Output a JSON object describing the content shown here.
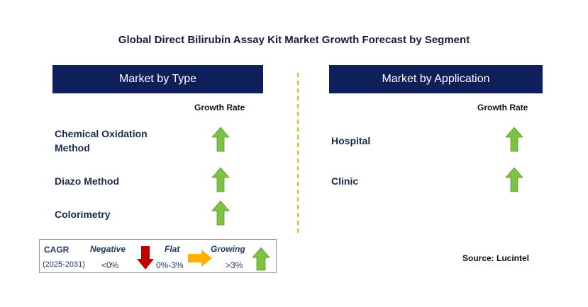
{
  "title": "Global Direct Bilirubin Assay Kit Market Growth Forecast by Segment",
  "panels": [
    {
      "header": "Market by Type",
      "column": "Growth Rate",
      "items": [
        "Chemical Oxidation Method",
        "Diazo Method",
        "Colorimetry"
      ]
    },
    {
      "header": "Market by Application",
      "column": "Growth Rate",
      "items": [
        "Hospital",
        "Clinic"
      ]
    }
  ],
  "legend": {
    "label": "CAGR",
    "period": "(2025-2031)",
    "entries": [
      {
        "name": "Negative",
        "range": "<0%"
      },
      {
        "name": "Flat",
        "range": "0%-3%"
      },
      {
        "name": "Growing",
        "range": ">3%"
      }
    ]
  },
  "source": "Source: Lucintel"
}
